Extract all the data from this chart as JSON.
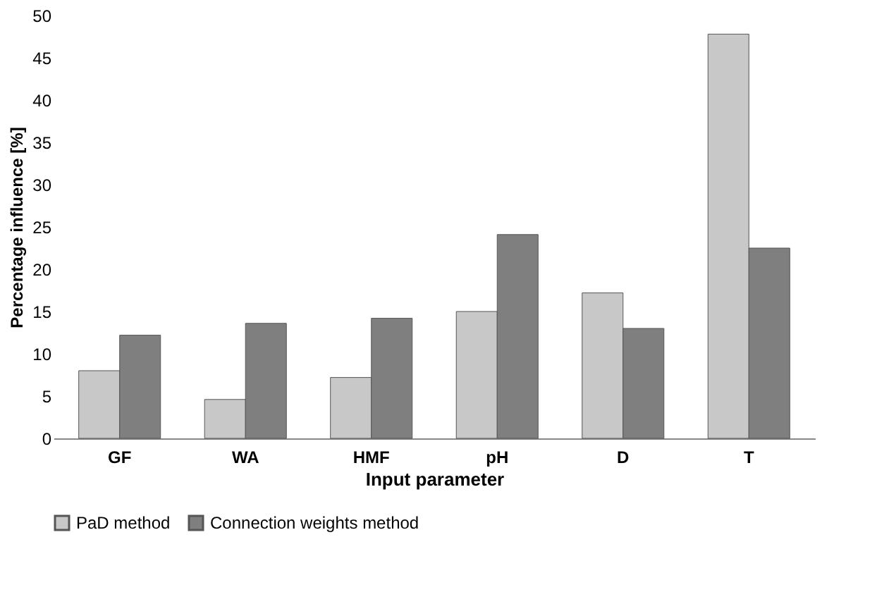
{
  "chart_data": {
    "type": "bar",
    "xlabel": "Input parameter",
    "ylabel": "Percentage influence [%]",
    "categories": [
      "GF",
      "WA",
      "HMF",
      "pH",
      "D",
      "T"
    ],
    "series": [
      {
        "name": "PaD method",
        "color": "#c8c8c8",
        "values": [
          8.0,
          4.6,
          7.2,
          15.0,
          17.2,
          47.8
        ]
      },
      {
        "name": "Connection weights method",
        "color": "#7f7f7f",
        "values": [
          12.2,
          13.6,
          14.2,
          24.1,
          13.0,
          22.5
        ]
      }
    ],
    "ylim": [
      0,
      50
    ],
    "yticks": [
      0,
      5,
      10,
      15,
      20,
      25,
      30,
      35,
      40,
      45,
      50
    ],
    "grid": false,
    "legend": "bottom"
  }
}
